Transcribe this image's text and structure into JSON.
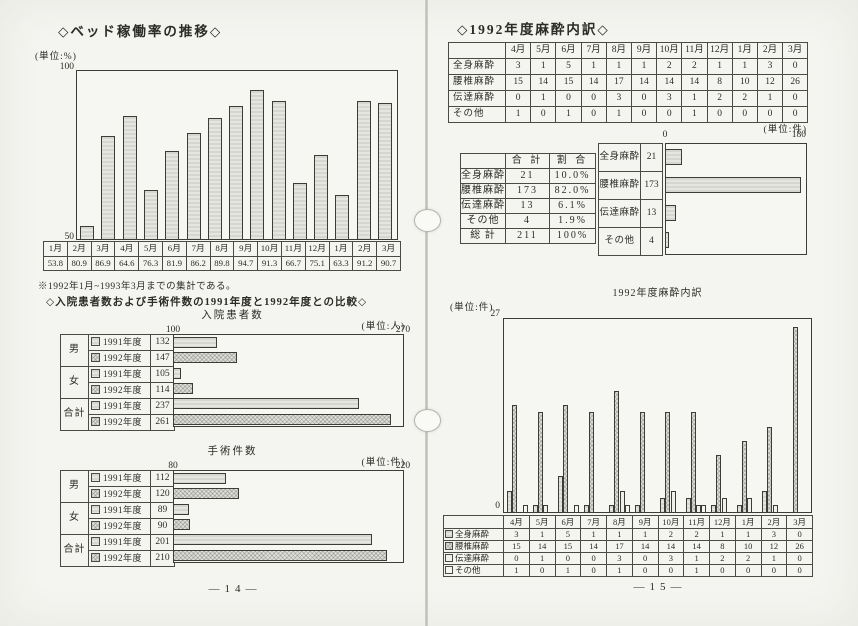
{
  "left_page": {
    "title": "◇ベッド稼働率の推移◇",
    "bed_chart": {
      "unit": "(単位:%)",
      "y_top": "100",
      "y_bottom": "50"
    },
    "note": "※1992年1月~1993年3月までの集計である。",
    "comparison_heading": "◇入院患者数および手術件数の1991年度と1992年度との比較◇",
    "inpatient": {
      "title": "入院患者数",
      "unit": "(単位:人)",
      "axis_min": "100",
      "axis_max": "270"
    },
    "surgery": {
      "title": "手術件数",
      "unit": "(単位:件)",
      "axis_min": "80",
      "axis_max": "220"
    },
    "page_number": "―14―"
  },
  "right_page": {
    "title": "◇1992年度麻酔内訳◇",
    "table_unit": "(単位:件)",
    "summary": {
      "headers": [
        "",
        "合 計",
        "割 合"
      ],
      "rows": [
        [
          "全身麻酔",
          "21",
          "10.0%"
        ],
        [
          "腰椎麻酔",
          "173",
          "82.0%"
        ],
        [
          "伝達麻酔",
          "13",
          "6.1%"
        ],
        [
          "その他",
          "4",
          "1.9%"
        ],
        [
          "総 計",
          "211",
          "100%"
        ]
      ]
    },
    "hbar": {
      "axis_min": "0",
      "axis_max": "180"
    },
    "monthly_chart": {
      "title": "1992年度麻酔内訳",
      "unit": "(単位:件)",
      "y_max": "27",
      "y_min": "0"
    },
    "page_number": "―15―"
  },
  "chart_data": [
    {
      "type": "bar",
      "title": "ベッド稼働率の推移",
      "ylabel": "%",
      "categories": [
        "1月",
        "2月",
        "3月",
        "4月",
        "5月",
        "6月",
        "7月",
        "8月",
        "9月",
        "10月",
        "11月",
        "12月",
        "1月",
        "2月",
        "3月"
      ],
      "values": [
        53.8,
        80.9,
        86.9,
        64.6,
        76.3,
        81.9,
        86.2,
        89.8,
        94.7,
        91.3,
        66.7,
        75.1,
        63.3,
        91.2,
        90.7
      ],
      "ylim": [
        50,
        100
      ],
      "grid": false
    },
    {
      "type": "bar",
      "orientation": "horizontal",
      "title": "入院患者数",
      "xlabel": "人",
      "categories": [
        "男",
        "女",
        "合計"
      ],
      "series": [
        {
          "name": "1991年度",
          "values": [
            132,
            105,
            237
          ]
        },
        {
          "name": "1992年度",
          "values": [
            147,
            114,
            261
          ]
        }
      ],
      "xlim": [
        100,
        270
      ],
      "legend_position": "left-table"
    },
    {
      "type": "bar",
      "orientation": "horizontal",
      "title": "手術件数",
      "xlabel": "件",
      "categories": [
        "男",
        "女",
        "合計"
      ],
      "series": [
        {
          "name": "1991年度",
          "values": [
            112,
            89,
            201
          ]
        },
        {
          "name": "1992年度",
          "values": [
            120,
            90,
            210
          ]
        }
      ],
      "xlim": [
        80,
        220
      ],
      "legend_position": "left-table"
    },
    {
      "type": "bar",
      "orientation": "horizontal",
      "categories": [
        "全身麻酔",
        "腰椎麻酔",
        "伝達麻酔",
        "その他"
      ],
      "values": [
        21,
        173,
        13,
        4
      ],
      "shares": [
        "10.0%",
        "82.0%",
        "6.1%",
        "1.9%"
      ],
      "total": 211,
      "xlim": [
        0,
        180
      ],
      "legend_position": "left-table"
    },
    {
      "type": "bar",
      "title": "1992年度麻酔内訳",
      "ylabel": "件",
      "categories": [
        "4月",
        "5月",
        "6月",
        "7月",
        "8月",
        "9月",
        "10月",
        "11月",
        "12月",
        "1月",
        "2月",
        "3月"
      ],
      "series": [
        {
          "name": "全身麻酔",
          "values": [
            3,
            1,
            5,
            1,
            1,
            1,
            2,
            2,
            1,
            1,
            3,
            0
          ]
        },
        {
          "name": "腰椎麻酔",
          "values": [
            15,
            14,
            15,
            14,
            17,
            14,
            14,
            14,
            8,
            10,
            12,
            26
          ]
        },
        {
          "name": "伝達麻酔",
          "values": [
            0,
            1,
            0,
            0,
            3,
            0,
            3,
            1,
            2,
            2,
            1,
            0
          ]
        },
        {
          "name": "その他",
          "values": [
            1,
            0,
            1,
            0,
            1,
            0,
            0,
            1,
            0,
            0,
            0,
            0
          ]
        }
      ],
      "ylim": [
        0,
        27
      ],
      "grid": false,
      "legend_position": "bottom-table"
    }
  ]
}
